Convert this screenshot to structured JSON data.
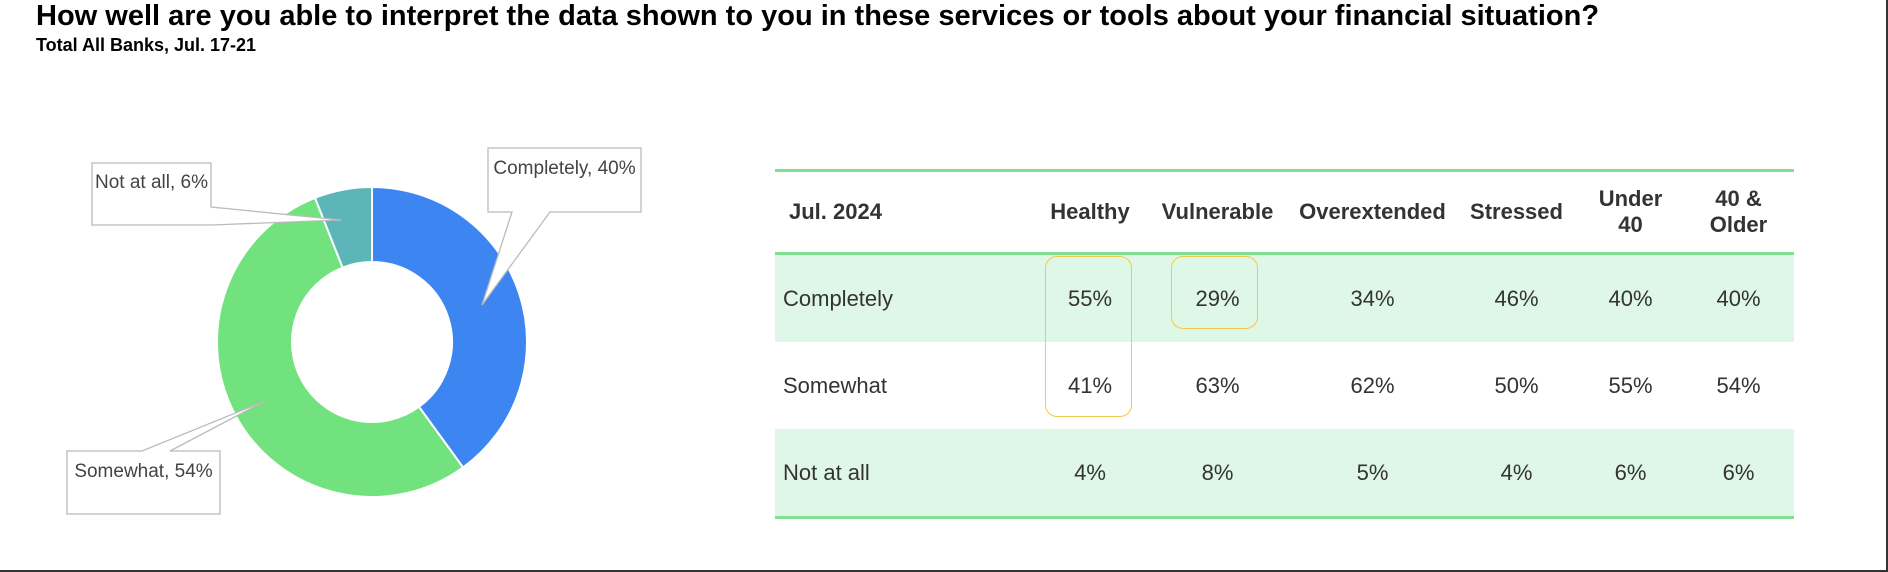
{
  "chart_data": {
    "type": "donut",
    "title": "How well are you able to interpret the data shown to you in these services or tools about your financial situation?",
    "subtitle": "Total All Banks, Jul. 17-21",
    "values": [
      40,
      54,
      6
    ],
    "value_labels": [
      "Completely, 40%",
      "Somewhat, 54%",
      "Not at all, 6%"
    ],
    "colors": [
      "#3d86f2",
      "#72e27f",
      "#5bb5b9"
    ]
  },
  "table": {
    "header": [
      "Jul. 2024",
      "Healthy",
      "Vulnerable",
      "Overextended",
      "Stressed",
      "Under 40",
      "40 & Older"
    ],
    "rows": [
      [
        "Completely",
        "55%",
        "29%",
        "34%",
        "46%",
        "40%",
        "40%"
      ],
      [
        "Somewhat",
        "41%",
        "63%",
        "62%",
        "50%",
        "55%",
        "54%"
      ],
      [
        "Not at all",
        "4%",
        "8%",
        "5%",
        "4%",
        "6%",
        "6%"
      ]
    ]
  }
}
